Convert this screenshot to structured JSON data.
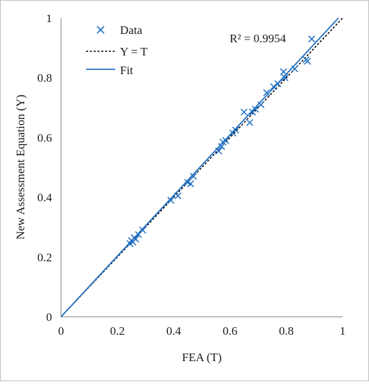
{
  "chart_data": {
    "type": "scatter",
    "xlabel": "FEA (T)",
    "ylabel": "New Assessment Equation (Y)",
    "xlim": [
      0,
      1
    ],
    "ylim": [
      0,
      1
    ],
    "xticks": [
      "0",
      "0.2",
      "0.4",
      "0.6",
      "0.8",
      "1"
    ],
    "yticks": [
      "0",
      "0.2",
      "0.4",
      "0.6",
      "0.8",
      "1"
    ],
    "grid": false,
    "legend_position": "top-left",
    "annotation": "R² = 0.9954",
    "series": [
      {
        "name": "Data",
        "kind": "scatter",
        "marker": "x",
        "color": "#1f6fc2",
        "points": [
          [
            0.245,
            0.245
          ],
          [
            0.25,
            0.255
          ],
          [
            0.255,
            0.25
          ],
          [
            0.26,
            0.265
          ],
          [
            0.265,
            0.26
          ],
          [
            0.275,
            0.275
          ],
          [
            0.29,
            0.29
          ],
          [
            0.39,
            0.39
          ],
          [
            0.415,
            0.405
          ],
          [
            0.45,
            0.45
          ],
          [
            0.46,
            0.445
          ],
          [
            0.47,
            0.47
          ],
          [
            0.56,
            0.555
          ],
          [
            0.57,
            0.57
          ],
          [
            0.575,
            0.585
          ],
          [
            0.585,
            0.59
          ],
          [
            0.61,
            0.615
          ],
          [
            0.62,
            0.625
          ],
          [
            0.65,
            0.685
          ],
          [
            0.67,
            0.65
          ],
          [
            0.68,
            0.685
          ],
          [
            0.69,
            0.695
          ],
          [
            0.71,
            0.71
          ],
          [
            0.73,
            0.75
          ],
          [
            0.755,
            0.77
          ],
          [
            0.77,
            0.78
          ],
          [
            0.79,
            0.82
          ],
          [
            0.795,
            0.8
          ],
          [
            0.83,
            0.83
          ],
          [
            0.87,
            0.86
          ],
          [
            0.875,
            0.855
          ],
          [
            0.89,
            0.93
          ]
        ]
      },
      {
        "name": "Y = T",
        "kind": "line",
        "style": "dashed",
        "color": "#000000",
        "points": [
          [
            0,
            0
          ],
          [
            1,
            1
          ]
        ]
      },
      {
        "name": "Fit",
        "kind": "line",
        "style": "solid",
        "color": "#1f6fc2",
        "points": [
          [
            0,
            0
          ],
          [
            0.985,
            1
          ]
        ]
      }
    ]
  }
}
